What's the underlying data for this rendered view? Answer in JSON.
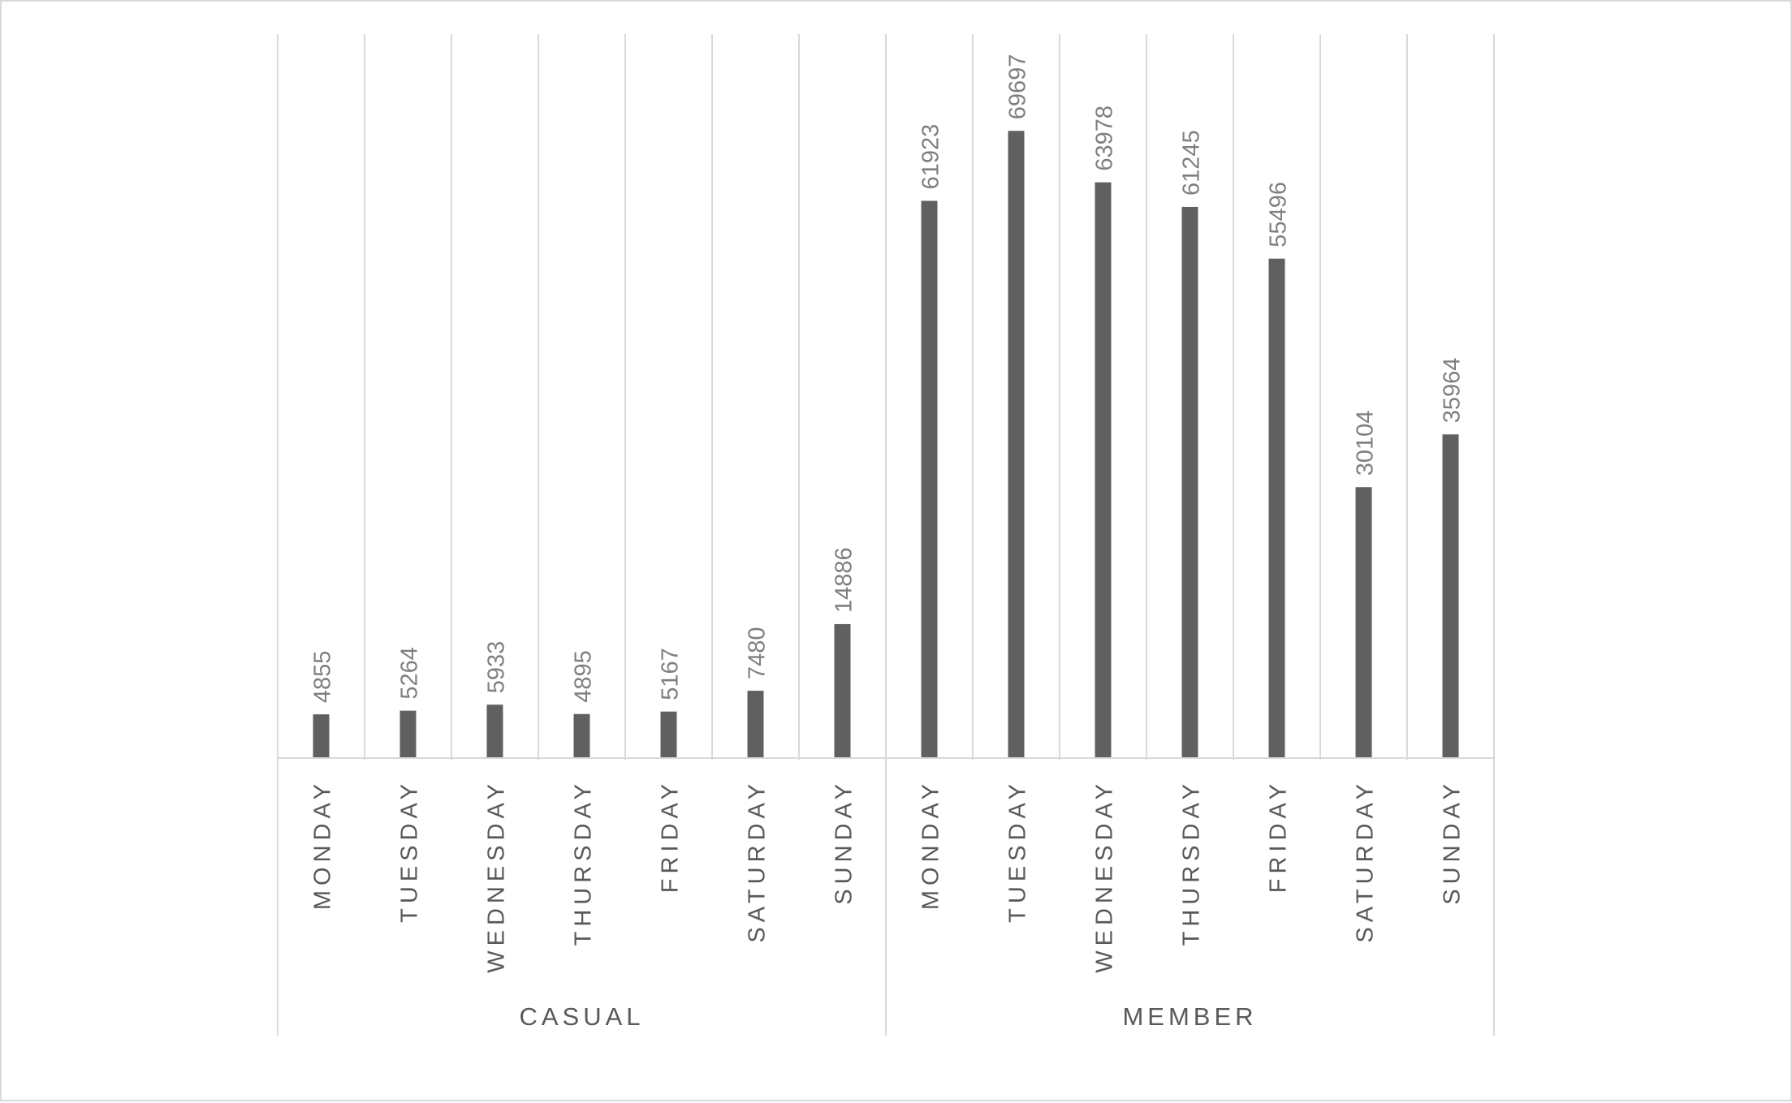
{
  "chart_data": {
    "type": "bar",
    "groups": [
      {
        "name": "CASUAL",
        "categories": [
          "MONDAY",
          "TUESDAY",
          "WEDNESDAY",
          "THURSDAY",
          "FRIDAY",
          "SATURDAY",
          "SUNDAY"
        ],
        "values": [
          4855,
          5264,
          5933,
          4895,
          5167,
          7480,
          14886
        ]
      },
      {
        "name": "MEMBER",
        "categories": [
          "MONDAY",
          "TUESDAY",
          "WEDNESDAY",
          "THURSDAY",
          "FRIDAY",
          "SATURDAY",
          "SUNDAY"
        ],
        "values": [
          61923,
          69697,
          63978,
          61245,
          55496,
          30104,
          35964
        ]
      }
    ],
    "title": "",
    "xlabel": "",
    "ylabel": "",
    "ylim": [
      0,
      80000
    ],
    "grid": "vertical category separators",
    "legend": "none",
    "colors": {
      "bar": "#606060",
      "grid": "#d9d9d9",
      "label_text": "#7f7f7f",
      "axis_text": "#595959"
    }
  }
}
